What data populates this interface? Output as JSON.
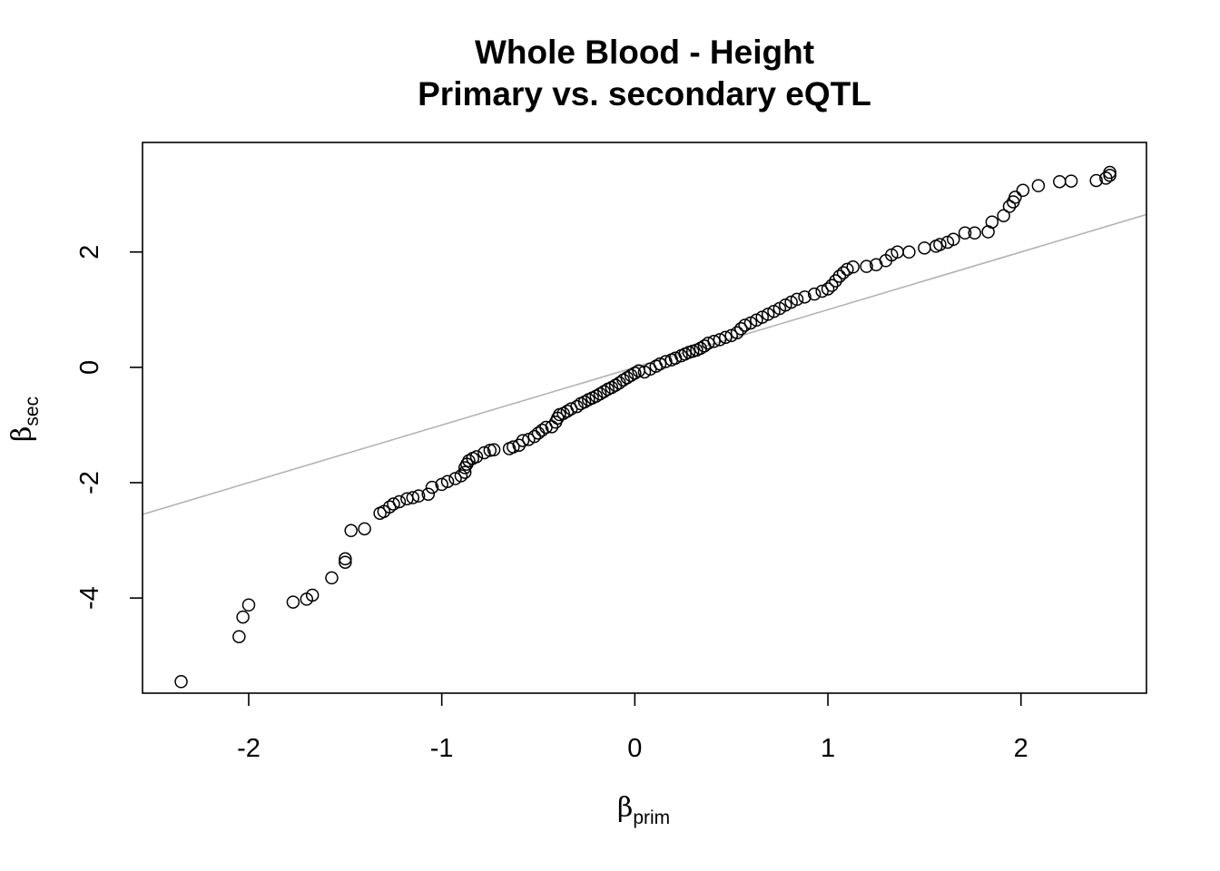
{
  "chart_data": {
    "type": "scatter",
    "title": "Whole Blood - Height",
    "subtitle": "Primary vs. secondary eQTL",
    "xlabel": {
      "symbol": "β",
      "subscript": "prim"
    },
    "ylabel": {
      "symbol": "β",
      "subscript": "sec"
    },
    "xlim": [
      -2.55,
      2.65
    ],
    "ylim": [
      -5.65,
      3.9
    ],
    "xticks": [
      -2,
      -1,
      0,
      1,
      2
    ],
    "yticks": [
      -4,
      -2,
      0,
      2
    ],
    "grid": false,
    "reference_line": {
      "slope": 1,
      "intercept": 0,
      "color": "#b3b3b3"
    },
    "points": [
      [
        -2.35,
        -5.45
      ],
      [
        -2.05,
        -4.67
      ],
      [
        -2.03,
        -4.33
      ],
      [
        -2.0,
        -4.12
      ],
      [
        -1.77,
        -4.07
      ],
      [
        -1.7,
        -4.02
      ],
      [
        -1.67,
        -3.95
      ],
      [
        -1.57,
        -3.65
      ],
      [
        -1.5,
        -3.38
      ],
      [
        -1.5,
        -3.32
      ],
      [
        -1.47,
        -2.83
      ],
      [
        -1.4,
        -2.8
      ],
      [
        -1.32,
        -2.53
      ],
      [
        -1.3,
        -2.5
      ],
      [
        -1.27,
        -2.42
      ],
      [
        -1.25,
        -2.37
      ],
      [
        -1.22,
        -2.33
      ],
      [
        -1.18,
        -2.28
      ],
      [
        -1.15,
        -2.26
      ],
      [
        -1.12,
        -2.23
      ],
      [
        -1.07,
        -2.2
      ],
      [
        -1.05,
        -2.08
      ],
      [
        -1.0,
        -2.03
      ],
      [
        -0.97,
        -1.98
      ],
      [
        -0.93,
        -1.93
      ],
      [
        -0.9,
        -1.88
      ],
      [
        -0.88,
        -1.82
      ],
      [
        -0.88,
        -1.74
      ],
      [
        -0.87,
        -1.68
      ],
      [
        -0.86,
        -1.62
      ],
      [
        -0.84,
        -1.58
      ],
      [
        -0.82,
        -1.55
      ],
      [
        -0.78,
        -1.48
      ],
      [
        -0.75,
        -1.44
      ],
      [
        -0.73,
        -1.43
      ],
      [
        -0.65,
        -1.41
      ],
      [
        -0.63,
        -1.38
      ],
      [
        -0.6,
        -1.35
      ],
      [
        -0.58,
        -1.27
      ],
      [
        -0.55,
        -1.25
      ],
      [
        -0.52,
        -1.2
      ],
      [
        -0.5,
        -1.14
      ],
      [
        -0.48,
        -1.09
      ],
      [
        -0.46,
        -1.04
      ],
      [
        -0.43,
        -1.03
      ],
      [
        -0.41,
        -0.95
      ],
      [
        -0.4,
        -0.88
      ],
      [
        -0.39,
        -0.82
      ],
      [
        -0.37,
        -0.8
      ],
      [
        -0.35,
        -0.76
      ],
      [
        -0.33,
        -0.72
      ],
      [
        -0.3,
        -0.68
      ],
      [
        -0.28,
        -0.63
      ],
      [
        -0.26,
        -0.6
      ],
      [
        -0.24,
        -0.56
      ],
      [
        -0.22,
        -0.53
      ],
      [
        -0.2,
        -0.5
      ],
      [
        -0.18,
        -0.46
      ],
      [
        -0.16,
        -0.42
      ],
      [
        -0.14,
        -0.38
      ],
      [
        -0.12,
        -0.35
      ],
      [
        -0.1,
        -0.31
      ],
      [
        -0.08,
        -0.27
      ],
      [
        -0.06,
        -0.22
      ],
      [
        -0.04,
        -0.18
      ],
      [
        -0.02,
        -0.14
      ],
      [
        0.0,
        -0.1
      ],
      [
        0.02,
        -0.06
      ],
      [
        0.05,
        -0.08
      ],
      [
        0.08,
        -0.03
      ],
      [
        0.11,
        0.02
      ],
      [
        0.13,
        0.06
      ],
      [
        0.16,
        0.1
      ],
      [
        0.19,
        0.13
      ],
      [
        0.21,
        0.16
      ],
      [
        0.24,
        0.2
      ],
      [
        0.26,
        0.23
      ],
      [
        0.28,
        0.26
      ],
      [
        0.3,
        0.28
      ],
      [
        0.32,
        0.3
      ],
      [
        0.34,
        0.33
      ],
      [
        0.36,
        0.37
      ],
      [
        0.38,
        0.42
      ],
      [
        0.41,
        0.45
      ],
      [
        0.44,
        0.48
      ],
      [
        0.47,
        0.52
      ],
      [
        0.5,
        0.55
      ],
      [
        0.53,
        0.6
      ],
      [
        0.55,
        0.67
      ],
      [
        0.57,
        0.73
      ],
      [
        0.6,
        0.77
      ],
      [
        0.63,
        0.82
      ],
      [
        0.66,
        0.87
      ],
      [
        0.69,
        0.92
      ],
      [
        0.72,
        0.97
      ],
      [
        0.75,
        1.02
      ],
      [
        0.78,
        1.08
      ],
      [
        0.81,
        1.13
      ],
      [
        0.84,
        1.18
      ],
      [
        0.88,
        1.22
      ],
      [
        0.93,
        1.27
      ],
      [
        0.97,
        1.32
      ],
      [
        1.0,
        1.36
      ],
      [
        1.02,
        1.42
      ],
      [
        1.04,
        1.5
      ],
      [
        1.06,
        1.58
      ],
      [
        1.08,
        1.64
      ],
      [
        1.1,
        1.7
      ],
      [
        1.13,
        1.74
      ],
      [
        1.2,
        1.75
      ],
      [
        1.25,
        1.78
      ],
      [
        1.3,
        1.85
      ],
      [
        1.33,
        1.95
      ],
      [
        1.36,
        2.0
      ],
      [
        1.42,
        2.0
      ],
      [
        1.5,
        2.07
      ],
      [
        1.56,
        2.1
      ],
      [
        1.58,
        2.13
      ],
      [
        1.62,
        2.17
      ],
      [
        1.65,
        2.22
      ],
      [
        1.71,
        2.33
      ],
      [
        1.76,
        2.33
      ],
      [
        1.83,
        2.35
      ],
      [
        1.85,
        2.52
      ],
      [
        1.91,
        2.63
      ],
      [
        1.94,
        2.79
      ],
      [
        1.96,
        2.87
      ],
      [
        1.97,
        2.95
      ],
      [
        2.01,
        3.07
      ],
      [
        2.09,
        3.15
      ],
      [
        2.2,
        3.22
      ],
      [
        2.26,
        3.23
      ],
      [
        2.39,
        3.24
      ],
      [
        2.44,
        3.28
      ],
      [
        2.46,
        3.33
      ],
      [
        2.46,
        3.38
      ]
    ]
  }
}
